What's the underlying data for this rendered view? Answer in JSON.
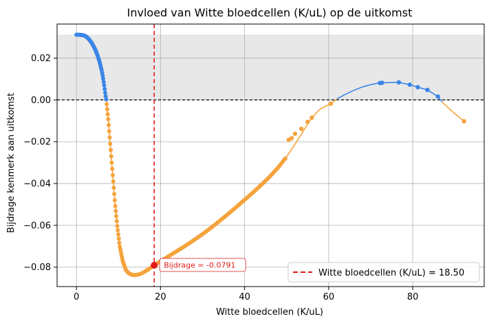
{
  "chart_data": {
    "type": "line",
    "title": "Invloed van Witte bloedcellen (K/uL) op de uitkomst",
    "xlabel": "Witte bloedcellen (K/uL)",
    "ylabel": "Bijdrage kenmerk aan uitkomst",
    "xlim": [
      -4.6,
      97.0
    ],
    "ylim": [
      -0.0893,
      0.0363
    ],
    "x_ticks": [
      0,
      20,
      40,
      60,
      80
    ],
    "y_ticks": [
      0.02,
      0.0,
      -0.02,
      -0.04,
      -0.06,
      -0.08
    ],
    "y_tick_labels": [
      "0.02",
      "0.00",
      "−0.02",
      "−0.04",
      "−0.06",
      "−0.08"
    ],
    "grid": true,
    "shaded_band": {
      "y_from": 0.0,
      "y_to": 0.0313,
      "color": "#e8e8e8"
    },
    "zero_line": {
      "y": 0.0,
      "color": "#000000",
      "style": "dashed"
    },
    "positive_color": "#3a86e8",
    "negative_color": "#f5a33c",
    "series": [
      {
        "points": [
          [
            0.0,
            0.0312
          ],
          [
            0.5,
            0.0312
          ],
          [
            1.0,
            0.0311
          ],
          [
            1.5,
            0.031
          ],
          [
            2.0,
            0.0307
          ],
          [
            2.5,
            0.03
          ],
          [
            3.0,
            0.029
          ],
          [
            3.5,
            0.0277
          ],
          [
            4.0,
            0.026
          ],
          [
            4.5,
            0.024
          ],
          [
            5.0,
            0.0215
          ],
          [
            5.5,
            0.0183
          ],
          [
            6.0,
            0.0142
          ],
          [
            6.3,
            0.011
          ],
          [
            6.6,
            0.007
          ],
          [
            6.9,
            0.0025
          ],
          [
            7.1,
            0.0
          ],
          [
            7.3,
            -0.004
          ],
          [
            7.6,
            -0.01
          ],
          [
            8.0,
            -0.02
          ],
          [
            8.4,
            -0.03
          ],
          [
            8.8,
            -0.04
          ],
          [
            9.2,
            -0.05
          ],
          [
            9.7,
            -0.06
          ],
          [
            10.3,
            -0.07
          ],
          [
            11.0,
            -0.077
          ],
          [
            11.8,
            -0.0815
          ],
          [
            12.5,
            -0.083
          ],
          [
            13.3,
            -0.0837
          ],
          [
            14.0,
            -0.0838
          ],
          [
            15.0,
            -0.0834
          ],
          [
            16.0,
            -0.0825
          ],
          [
            17.0,
            -0.0812
          ],
          [
            18.5,
            -0.0791
          ],
          [
            20.0,
            -0.0772
          ],
          [
            22.0,
            -0.0747
          ],
          [
            24.0,
            -0.0722
          ],
          [
            26.0,
            -0.0697
          ],
          [
            28.0,
            -0.067
          ],
          [
            30.0,
            -0.0642
          ],
          [
            32.0,
            -0.0612
          ],
          [
            34.0,
            -0.058
          ],
          [
            36.0,
            -0.0547
          ],
          [
            38.0,
            -0.0513
          ],
          [
            40.0,
            -0.0478
          ],
          [
            42.0,
            -0.0443
          ],
          [
            44.0,
            -0.0406
          ],
          [
            46.0,
            -0.0367
          ],
          [
            48.0,
            -0.0323
          ],
          [
            50.0,
            -0.0272
          ],
          [
            52.0,
            -0.0212
          ],
          [
            53.5,
            -0.0165
          ],
          [
            55.0,
            -0.0115
          ],
          [
            56.0,
            -0.0085
          ],
          [
            58.0,
            -0.0043
          ],
          [
            60.5,
            -0.0018
          ],
          [
            62.0,
            0.0005
          ],
          [
            64.0,
            0.0027
          ],
          [
            66.0,
            0.0046
          ],
          [
            68.0,
            0.0062
          ],
          [
            70.0,
            0.0073
          ],
          [
            72.0,
            0.0081
          ],
          [
            72.7,
            0.0082
          ],
          [
            76.7,
            0.0084
          ],
          [
            79.3,
            0.0073
          ],
          [
            81.2,
            0.0061
          ],
          [
            83.5,
            0.0048
          ],
          [
            86.0,
            0.0016
          ],
          [
            87.0,
            -0.001
          ],
          [
            89.5,
            -0.0057
          ],
          [
            92.2,
            -0.0102
          ]
        ],
        "markers": [
          [
            72.2,
            0.0081
          ],
          [
            72.7,
            0.0082
          ],
          [
            76.7,
            0.0084
          ],
          [
            79.3,
            0.0073
          ],
          [
            81.2,
            0.0061
          ],
          [
            83.5,
            0.0048
          ],
          [
            86.0,
            0.0016
          ],
          [
            92.2,
            -0.0102
          ],
          [
            60.5,
            -0.0018
          ],
          [
            56.0,
            -0.0085
          ],
          [
            55.0,
            -0.0105
          ],
          [
            53.5,
            -0.0138
          ],
          [
            52.0,
            -0.0162
          ],
          [
            51.2,
            -0.0183
          ],
          [
            50.5,
            -0.0191
          ]
        ]
      }
    ],
    "reference_line": {
      "x": 18.5,
      "color": "#e01b1b",
      "style": "dashed"
    },
    "highlight_point": {
      "x": 18.5,
      "y": -0.0791,
      "color": "#e01b1b"
    },
    "annotation": {
      "text": "Bijdrage = -0.0791",
      "color": "#e01b1b"
    },
    "legend": {
      "entries": [
        "Witte bloedcellen (K/uL) = 18.50"
      ],
      "placement": "lower-right"
    }
  }
}
